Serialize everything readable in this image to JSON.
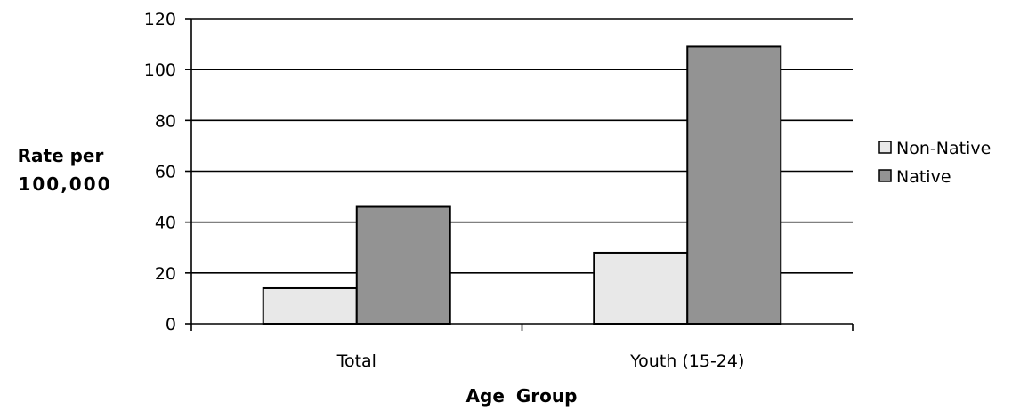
{
  "chart_data": {
    "type": "bar",
    "title": "",
    "xlabel": "Age Group",
    "ylabel_lines": [
      "Rate per",
      "100,000"
    ],
    "categories": [
      "Total",
      "Youth (15-24)"
    ],
    "series": [
      {
        "name": "Non-Native",
        "values": [
          14,
          28
        ],
        "color": "#e8e8e8"
      },
      {
        "name": "Native",
        "values": [
          46,
          109
        ],
        "color": "#939393"
      }
    ],
    "ylim": [
      0,
      120
    ],
    "yticks": [
      0,
      20,
      40,
      60,
      80,
      100,
      120
    ],
    "grid": true,
    "legend_position": "right"
  }
}
